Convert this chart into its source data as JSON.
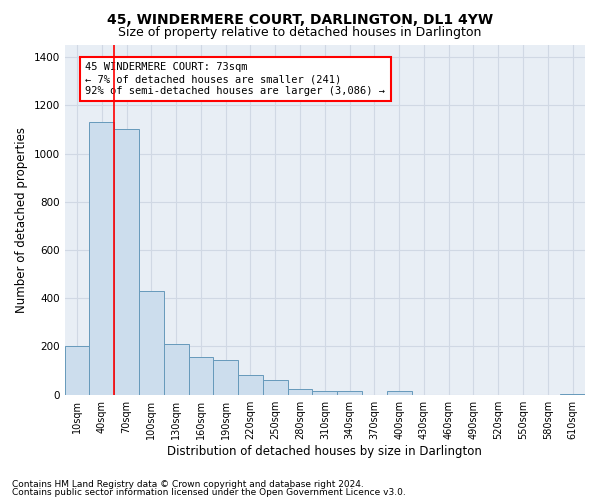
{
  "title": "45, WINDERMERE COURT, DARLINGTON, DL1 4YW",
  "subtitle": "Size of property relative to detached houses in Darlington",
  "xlabel": "Distribution of detached houses by size in Darlington",
  "ylabel": "Number of detached properties",
  "categories": [
    "10sqm",
    "40sqm",
    "70sqm",
    "100sqm",
    "130sqm",
    "160sqm",
    "190sqm",
    "220sqm",
    "250sqm",
    "280sqm",
    "310sqm",
    "340sqm",
    "370sqm",
    "400sqm",
    "430sqm",
    "460sqm",
    "490sqm",
    "520sqm",
    "550sqm",
    "580sqm",
    "610sqm"
  ],
  "bar_values": [
    200,
    1130,
    1100,
    430,
    210,
    155,
    145,
    80,
    60,
    25,
    15,
    15,
    0,
    15,
    0,
    0,
    0,
    0,
    0,
    0,
    5
  ],
  "bar_color": "#ccdded",
  "bar_edge_color": "#6699bb",
  "ylim": [
    0,
    1450
  ],
  "yticks": [
    0,
    200,
    400,
    600,
    800,
    1000,
    1200,
    1400
  ],
  "red_line_x": 1.5,
  "annotation_line1": "45 WINDERMERE COURT: 73sqm",
  "annotation_line2": "← 7% of detached houses are smaller (241)",
  "annotation_line3": "92% of semi-detached houses are larger (3,086) →",
  "footer_line1": "Contains HM Land Registry data © Crown copyright and database right 2024.",
  "footer_line2": "Contains public sector information licensed under the Open Government Licence v3.0.",
  "bg_color": "#e8eef5",
  "grid_color": "#d0d8e4",
  "title_fontsize": 10,
  "subtitle_fontsize": 9,
  "axis_label_fontsize": 8.5,
  "tick_fontsize": 7,
  "annotation_fontsize": 7.5,
  "footer_fontsize": 6.5
}
